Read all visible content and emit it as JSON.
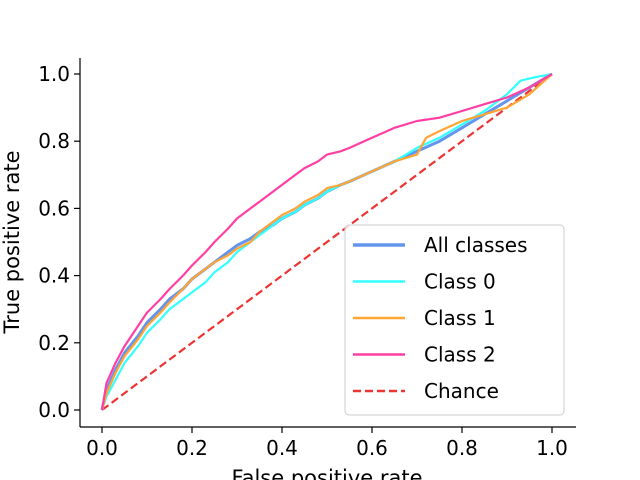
{
  "chart_data": {
    "type": "line",
    "xlabel": "False positive rate",
    "ylabel": "True positive rate",
    "xlim": [
      -0.05,
      1.05
    ],
    "ylim": [
      -0.05,
      1.05
    ],
    "xticks": [
      "0.0",
      "0.2",
      "0.4",
      "0.6",
      "0.8",
      "1.0"
    ],
    "yticks": [
      "0.0",
      "0.2",
      "0.4",
      "0.6",
      "0.8",
      "1.0"
    ],
    "grid": false,
    "legend_position": "lower-right",
    "series": [
      {
        "name": "All classes",
        "color": "#6495ED",
        "style": "solid",
        "x": [
          0,
          0.01,
          0.03,
          0.05,
          0.08,
          0.1,
          0.13,
          0.15,
          0.18,
          0.2,
          0.23,
          0.25,
          0.28,
          0.3,
          0.33,
          0.35,
          0.38,
          0.4,
          0.43,
          0.45,
          0.48,
          0.5,
          0.53,
          0.55,
          0.6,
          0.65,
          0.7,
          0.75,
          0.8,
          0.85,
          0.9,
          0.95,
          1.0
        ],
        "y": [
          0,
          0.06,
          0.12,
          0.17,
          0.22,
          0.26,
          0.3,
          0.33,
          0.36,
          0.39,
          0.42,
          0.44,
          0.47,
          0.49,
          0.51,
          0.53,
          0.55,
          0.57,
          0.59,
          0.61,
          0.63,
          0.65,
          0.67,
          0.68,
          0.71,
          0.74,
          0.77,
          0.8,
          0.84,
          0.88,
          0.92,
          0.96,
          1.0
        ]
      },
      {
        "name": "Class 0",
        "color": "#33FFFF",
        "style": "solid",
        "x": [
          0,
          0.01,
          0.03,
          0.05,
          0.08,
          0.1,
          0.13,
          0.15,
          0.18,
          0.2,
          0.23,
          0.25,
          0.28,
          0.3,
          0.33,
          0.35,
          0.38,
          0.4,
          0.43,
          0.45,
          0.48,
          0.5,
          0.53,
          0.55,
          0.6,
          0.65,
          0.7,
          0.75,
          0.8,
          0.85,
          0.9,
          0.93,
          0.96,
          1.0
        ],
        "y": [
          0,
          0.04,
          0.09,
          0.14,
          0.19,
          0.23,
          0.27,
          0.3,
          0.33,
          0.35,
          0.38,
          0.41,
          0.44,
          0.47,
          0.5,
          0.52,
          0.55,
          0.57,
          0.59,
          0.61,
          0.63,
          0.65,
          0.67,
          0.68,
          0.71,
          0.74,
          0.78,
          0.81,
          0.85,
          0.89,
          0.94,
          0.98,
          0.99,
          1.0
        ]
      },
      {
        "name": "Class 1",
        "color": "#FFA533",
        "style": "solid",
        "x": [
          0,
          0.01,
          0.03,
          0.05,
          0.08,
          0.1,
          0.13,
          0.15,
          0.18,
          0.2,
          0.23,
          0.25,
          0.28,
          0.3,
          0.33,
          0.35,
          0.38,
          0.4,
          0.43,
          0.45,
          0.48,
          0.5,
          0.53,
          0.55,
          0.6,
          0.65,
          0.7,
          0.72,
          0.75,
          0.8,
          0.85,
          0.9,
          0.95,
          1.0
        ],
        "y": [
          0,
          0.05,
          0.11,
          0.16,
          0.21,
          0.25,
          0.29,
          0.32,
          0.36,
          0.39,
          0.42,
          0.44,
          0.46,
          0.48,
          0.5,
          0.53,
          0.56,
          0.58,
          0.6,
          0.62,
          0.64,
          0.66,
          0.67,
          0.68,
          0.71,
          0.74,
          0.76,
          0.81,
          0.83,
          0.86,
          0.88,
          0.9,
          0.94,
          1.0
        ]
      },
      {
        "name": "Class 2",
        "color": "#FF3FA4",
        "style": "solid",
        "x": [
          0,
          0.01,
          0.03,
          0.05,
          0.08,
          0.1,
          0.13,
          0.15,
          0.18,
          0.2,
          0.23,
          0.25,
          0.28,
          0.3,
          0.33,
          0.35,
          0.38,
          0.4,
          0.43,
          0.45,
          0.48,
          0.5,
          0.53,
          0.55,
          0.6,
          0.65,
          0.7,
          0.75,
          0.8,
          0.85,
          0.9,
          0.95,
          1.0
        ],
        "y": [
          0,
          0.08,
          0.14,
          0.19,
          0.25,
          0.29,
          0.33,
          0.36,
          0.4,
          0.43,
          0.47,
          0.5,
          0.54,
          0.57,
          0.6,
          0.62,
          0.65,
          0.67,
          0.7,
          0.72,
          0.74,
          0.76,
          0.77,
          0.78,
          0.81,
          0.84,
          0.86,
          0.87,
          0.89,
          0.91,
          0.93,
          0.96,
          1.0
        ]
      },
      {
        "name": "Chance",
        "color": "#EE3333",
        "style": "dashed",
        "x": [
          0,
          1
        ],
        "y": [
          0,
          1
        ]
      }
    ]
  }
}
